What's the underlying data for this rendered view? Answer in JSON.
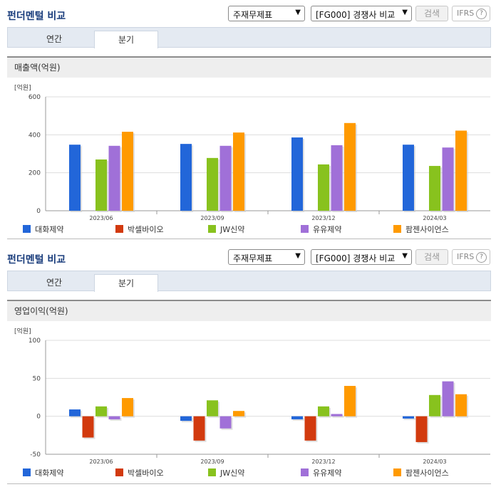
{
  "title": "펀더멘털 비교",
  "controls": {
    "statement_select": "주재무제표",
    "peer_select": "[FG000] 경쟁사 비교",
    "search_label": "검색",
    "ifrs_label": "IFRS",
    "help_glyph": "?"
  },
  "tabs": [
    "연간",
    "분기"
  ],
  "active_tab": "분기",
  "colors": {
    "대화제약": "#2266d9",
    "박셀바이오": "#d23a0e",
    "JW신약": "#88c21e",
    "유유제약": "#a070d8",
    "팜젠사이언스": "#ff9a00"
  },
  "chart_data": [
    {
      "type": "bar",
      "title": "매출액(억원)",
      "ylabel": "[억원]",
      "categories": [
        "2023/06",
        "2023/09",
        "2023/12",
        "2024/03"
      ],
      "ylim": [
        0,
        600
      ],
      "yticks": [
        0,
        200,
        400,
        600
      ],
      "grid": true,
      "legend": "bottom",
      "series": [
        {
          "name": "대화제약",
          "values": [
            348,
            352,
            386,
            348
          ]
        },
        {
          "name": "박셀바이오",
          "values": [
            0,
            0,
            0,
            0
          ]
        },
        {
          "name": "JW신약",
          "values": [
            270,
            278,
            244,
            236
          ]
        },
        {
          "name": "유유제약",
          "values": [
            342,
            342,
            345,
            333
          ]
        },
        {
          "name": "팜젠사이언스",
          "values": [
            416,
            412,
            462,
            422
          ]
        }
      ]
    },
    {
      "type": "bar",
      "title": "영업이익(억원)",
      "ylabel": "[억원]",
      "categories": [
        "2023/06",
        "2023/09",
        "2023/12",
        "2024/03"
      ],
      "ylim": [
        -50,
        100
      ],
      "yticks": [
        -50,
        0,
        50,
        100
      ],
      "grid": true,
      "legend": "bottom",
      "series": [
        {
          "name": "대화제약",
          "values": [
            9,
            -6,
            -4,
            -3
          ]
        },
        {
          "name": "박셀바이오",
          "values": [
            -28,
            -32,
            -32,
            -34
          ]
        },
        {
          "name": "JW신약",
          "values": [
            13,
            21,
            13,
            28
          ]
        },
        {
          "name": "유유제약",
          "values": [
            -4,
            -16,
            3,
            46
          ]
        },
        {
          "name": "팜젠사이언스",
          "values": [
            24,
            7,
            40,
            29
          ]
        }
      ]
    }
  ]
}
